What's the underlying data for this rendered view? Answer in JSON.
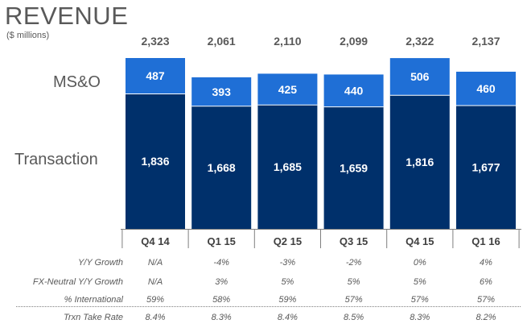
{
  "header": {
    "title": "REVENUE",
    "subtitle": "($ millions)"
  },
  "segment_labels": {
    "top": "MS&O",
    "bottom": "Transaction"
  },
  "colors": {
    "msao": "#1f6fd6",
    "transaction": "#00306b",
    "axis": "#7f7f7f",
    "text": "#595959"
  },
  "chart_data": {
    "type": "bar",
    "stacked": true,
    "categories": [
      "Q4 14",
      "Q1 15",
      "Q2 15",
      "Q3 15",
      "Q4 15",
      "Q1 16"
    ],
    "series": [
      {
        "name": "Transaction",
        "values": [
          1836,
          1668,
          1685,
          1659,
          1816,
          1677
        ]
      },
      {
        "name": "MS&O",
        "values": [
          487,
          393,
          425,
          440,
          506,
          460
        ]
      }
    ],
    "totals": [
      "2,323",
      "2,061",
      "2,110",
      "2,099",
      "2,322",
      "2,137"
    ],
    "series_labels": {
      "Transaction": [
        "1,836",
        "1,668",
        "1,685",
        "1,659",
        "1,816",
        "1,677"
      ],
      "MS&O": [
        "487",
        "393",
        "425",
        "440",
        "506",
        "460"
      ]
    },
    "title": "REVENUE",
    "ylabel": "($ millions)",
    "ylim": [
      0,
      2323
    ]
  },
  "table": {
    "rows": [
      {
        "label": "Y/Y Growth",
        "values": [
          "N/A",
          "-4%",
          "-3%",
          "-2%",
          "0%",
          "4%"
        ]
      },
      {
        "label": "FX-Neutral Y/Y Growth",
        "values": [
          "N/A",
          "3%",
          "5%",
          "5%",
          "5%",
          "6%"
        ]
      },
      {
        "label": "% International",
        "values": [
          "59%",
          "58%",
          "59%",
          "57%",
          "57%",
          "57%"
        ]
      },
      {
        "label": "Trxn Take Rate",
        "values": [
          "8.4%",
          "8.3%",
          "8.4%",
          "8.5%",
          "8.3%",
          "8.2%"
        ]
      }
    ]
  }
}
